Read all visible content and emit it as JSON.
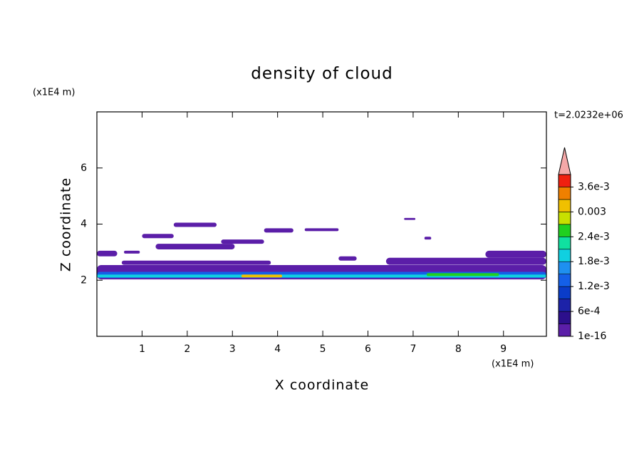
{
  "chart_data": {
    "type": "contour",
    "title": "density of cloud",
    "time_label": "t=2.0232e+06",
    "xlabel": "X coordinate",
    "ylabel": "Z coordinate",
    "x_unit": "(x1E4 m)",
    "y_unit": "(x1E4 m)",
    "xlim": [
      0,
      9.95
    ],
    "ylim": [
      0,
      8
    ],
    "xticks": [
      1,
      2,
      3,
      4,
      5,
      6,
      7,
      8,
      9
    ],
    "yticks": [
      2,
      4,
      6
    ],
    "colorbar": {
      "clim": [
        1e-16,
        0.0039
      ],
      "colors": [
        "#5b1ea8",
        "#2c0f8c",
        "#1c22a8",
        "#0a3cc8",
        "#1460e8",
        "#1e90f0",
        "#10d0e0",
        "#10e0a0",
        "#20d020",
        "#c8e000",
        "#f0c000",
        "#f08000",
        "#f02010"
      ],
      "extend_color": "#f4a8a8",
      "ticks": [
        {
          "value": 1e-16,
          "label": "1e-16"
        },
        {
          "value": 0.0006,
          "label": "6e-4"
        },
        {
          "value": 0.0012,
          "label": "1.2e-3"
        },
        {
          "value": 0.0018,
          "label": "1.8e-3"
        },
        {
          "value": 0.0024,
          "label": "2.4e-3"
        },
        0.003,
        {
          "value": 0.0036,
          "label": "3.6e-3"
        }
      ]
    },
    "patches": [
      {
        "x": [
          0,
          9.95
        ],
        "z": [
          2.03,
          2.54
        ],
        "value": 0.0001
      },
      {
        "x": [
          8.6,
          9.95
        ],
        "z": [
          2.8,
          3.05
        ],
        "value": 0.0001
      },
      {
        "x": [
          0,
          0.45
        ],
        "z": [
          2.85,
          3.05
        ],
        "value": 0.0001
      },
      {
        "x": [
          0.55,
          3.85
        ],
        "z": [
          2.55,
          2.7
        ],
        "value": 0.0001
      },
      {
        "x": [
          1.3,
          3.05
        ],
        "z": [
          3.1,
          3.3
        ],
        "value": 0.0001
      },
      {
        "x": [
          2.75,
          3.7
        ],
        "z": [
          3.3,
          3.45
        ],
        "value": 0.0001
      },
      {
        "x": [
          1.0,
          1.7
        ],
        "z": [
          3.5,
          3.65
        ],
        "value": 0.0001
      },
      {
        "x": [
          1.7,
          2.65
        ],
        "z": [
          3.9,
          4.05
        ],
        "value": 0.0001
      },
      {
        "x": [
          3.7,
          4.35
        ],
        "z": [
          3.7,
          3.85
        ],
        "value": 0.0001
      },
      {
        "x": [
          4.6,
          5.35
        ],
        "z": [
          3.75,
          3.85
        ],
        "value": 0.0001
      },
      {
        "x": [
          5.35,
          5.75
        ],
        "z": [
          2.7,
          2.85
        ],
        "value": 0.0001
      },
      {
        "x": [
          6.8,
          7.05
        ],
        "z": [
          4.15,
          4.22
        ],
        "value": 0.0001
      },
      {
        "x": [
          7.25,
          7.4
        ],
        "z": [
          3.45,
          3.55
        ],
        "value": 0.0001
      },
      {
        "x": [
          6.4,
          9.95
        ],
        "z": [
          2.55,
          2.8
        ],
        "value": 0.0001
      },
      {
        "x": [
          0.6,
          0.95
        ],
        "z": [
          2.95,
          3.05
        ],
        "value": 0.0001
      },
      {
        "x": [
          0,
          9.95
        ],
        "z": [
          2.08,
          2.3
        ],
        "value": 0.0013
      },
      {
        "x": [
          0,
          9.95
        ],
        "z": [
          2.1,
          2.2
        ],
        "value": 0.0019
      },
      {
        "x": [
          7.3,
          8.9
        ],
        "z": [
          2.15,
          2.25
        ],
        "value": 0.0025
      },
      {
        "x": [
          3.2,
          4.1
        ],
        "z": [
          2.1,
          2.2
        ],
        "value": 0.0031
      }
    ]
  }
}
